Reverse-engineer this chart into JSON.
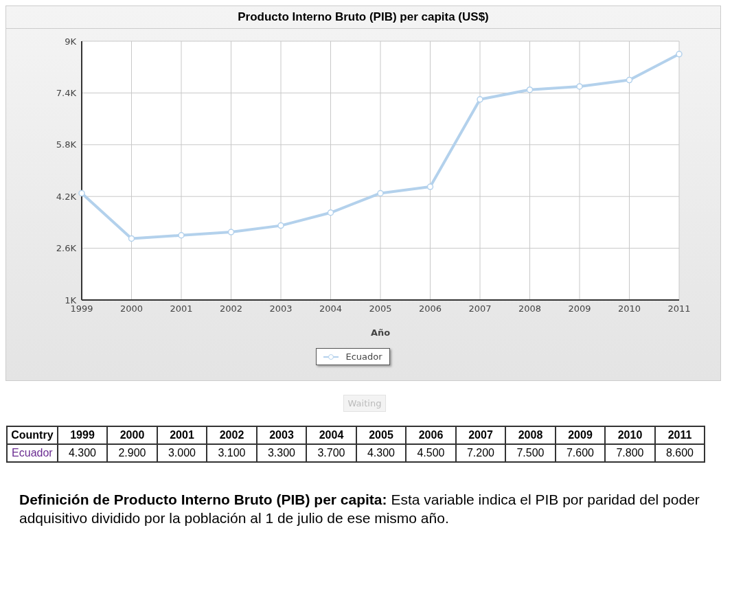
{
  "chart_data": {
    "type": "line",
    "title": "Producto Interno Bruto (PIB) per capita (US$)",
    "xlabel": "Año",
    "categories": [
      "1999",
      "2000",
      "2001",
      "2002",
      "2003",
      "2004",
      "2005",
      "2006",
      "2007",
      "2008",
      "2009",
      "2010",
      "2011"
    ],
    "series": [
      {
        "name": "Ecuador",
        "color": "#b3d1ec",
        "values": [
          4.3,
          2.9,
          3.0,
          3.1,
          3.3,
          3.7,
          4.3,
          4.5,
          7.2,
          7.5,
          7.6,
          7.8,
          8.6
        ],
        "value_labels": [
          "4.300",
          "2.900",
          "3.000",
          "3.100",
          "3.300",
          "3.700",
          "4.300",
          "4.500",
          "7.200",
          "7.500",
          "7.600",
          "7.800",
          "8.600"
        ]
      }
    ],
    "ylim": [
      1,
      9
    ],
    "yticks": [
      {
        "value": 1,
        "label": "1K"
      },
      {
        "value": 2.6,
        "label": "2.6K"
      },
      {
        "value": 4.2,
        "label": "4.2K"
      },
      {
        "value": 5.8,
        "label": "5.8K"
      },
      {
        "value": 7.4,
        "label": "7.4K"
      },
      {
        "value": 9,
        "label": "9K"
      }
    ],
    "grid": true,
    "legend": "bottom",
    "marker": "circle",
    "line_style": "solid",
    "annotations": [
      "Waiting",
      "Country",
      "Definición de Producto Interno Bruto (PIB) per capita:",
      "Esta variable indica el PIB por paridad del poder adquisitivo dividido por la población al 1 de julio de ese mismo año."
    ]
  }
}
